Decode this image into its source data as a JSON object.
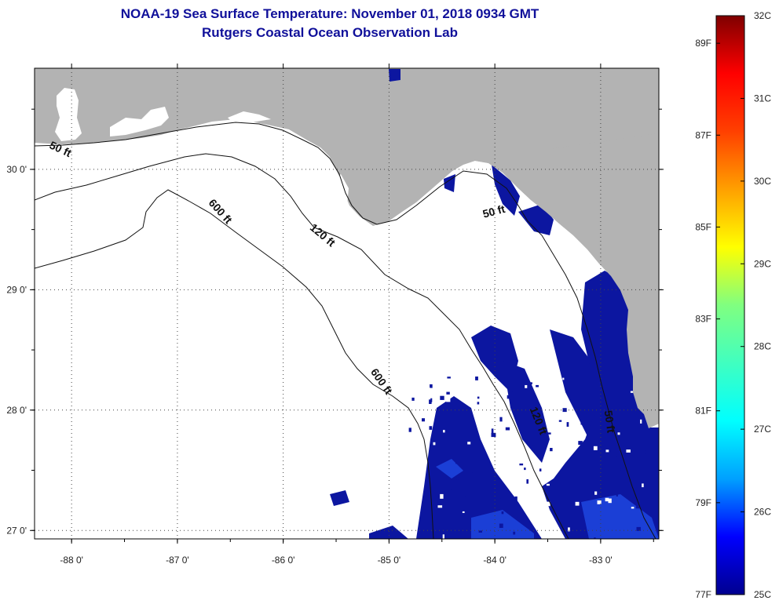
{
  "title": {
    "line1": "NOAA-19 Sea Surface Temperature:  November 01, 2018 0934 GMT",
    "line2": "Rutgers Coastal Ocean Observation Lab"
  },
  "map": {
    "lon_range": [
      -88.35,
      -82.45
    ],
    "lat_range": [
      26.93,
      30.84
    ],
    "lon_ticks": [
      {
        "value": -88,
        "label": "-88 0'"
      },
      {
        "value": -87,
        "label": "-87 0'"
      },
      {
        "value": -86,
        "label": "-86 0'"
      },
      {
        "value": -85,
        "label": "-85 0'"
      },
      {
        "value": -84,
        "label": "-84 0'"
      },
      {
        "value": -83,
        "label": "-83 0'"
      }
    ],
    "lat_ticks": [
      {
        "value": 30,
        "label": "30 0'"
      },
      {
        "value": 29,
        "label": "29 0'"
      },
      {
        "value": 28,
        "label": "28 0'"
      },
      {
        "value": 27,
        "label": "27 0'"
      }
    ],
    "contour_labels": [
      {
        "text": "50 ft",
        "lon": -88.12,
        "lat": 30.14,
        "rotate": 25
      },
      {
        "text": "600 ft",
        "lon": -86.62,
        "lat": 29.63,
        "rotate": 48
      },
      {
        "text": "120 ft",
        "lon": -85.65,
        "lat": 29.43,
        "rotate": 40
      },
      {
        "text": "50 ft",
        "lon": -84.0,
        "lat": 29.62,
        "rotate": -15
      },
      {
        "text": "600 ft",
        "lon": -85.1,
        "lat": 28.22,
        "rotate": 55
      },
      {
        "text": "120 ft",
        "lon": -83.62,
        "lat": 27.9,
        "rotate": 68
      },
      {
        "text": "50 ft",
        "lon": -82.95,
        "lat": 27.9,
        "rotate": 82
      }
    ],
    "colors": {
      "land": "#b3b3b3",
      "cloud": "#ffffff",
      "water_cold": "#0c16a0",
      "water_cool": "#1b3fd6"
    }
  },
  "colorbar": {
    "colors": [
      "#00008f",
      "#0000ff",
      "#00a0ff",
      "#00ffff",
      "#40ffc0",
      "#80ff80",
      "#ffff00",
      "#ffa000",
      "#ff4000",
      "#ff0000",
      "#7f0000"
    ],
    "fahrenheit": [
      {
        "value": 89,
        "label": "89F"
      },
      {
        "value": 87,
        "label": "87F"
      },
      {
        "value": 85,
        "label": "85F"
      },
      {
        "value": 83,
        "label": "83F"
      },
      {
        "value": 81,
        "label": "81F"
      },
      {
        "value": 79,
        "label": "79F"
      },
      {
        "value": 77,
        "label": "77F"
      }
    ],
    "celsius": [
      {
        "value": 32,
        "label": "32C"
      },
      {
        "value": 31,
        "label": "31C"
      },
      {
        "value": 30,
        "label": "30C"
      },
      {
        "value": 29,
        "label": "29C"
      },
      {
        "value": 28,
        "label": "28C"
      },
      {
        "value": 27,
        "label": "27C"
      },
      {
        "value": 26,
        "label": "26C"
      },
      {
        "value": 25,
        "label": "25C"
      }
    ]
  }
}
